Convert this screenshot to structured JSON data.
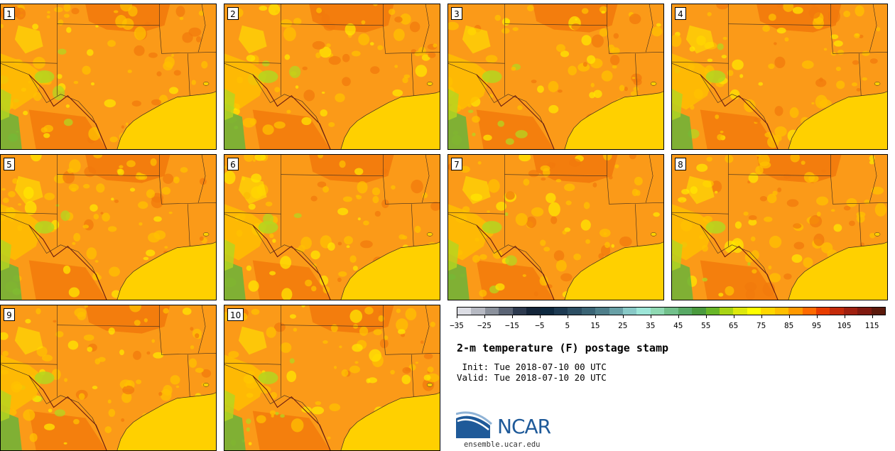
{
  "panels": [
    {
      "label": "1"
    },
    {
      "label": "2"
    },
    {
      "label": "3"
    },
    {
      "label": "4"
    },
    {
      "label": "5"
    },
    {
      "label": "6"
    },
    {
      "label": "7"
    },
    {
      "label": "8"
    },
    {
      "label": "9"
    },
    {
      "label": "10"
    }
  ],
  "colorbar": {
    "colors": [
      "#dcdde4",
      "#b6b9c2",
      "#8b919c",
      "#5b6475",
      "#2d3a4f",
      "#14253a",
      "#0e2940",
      "#1d3a52",
      "#2c4e63",
      "#3a6475",
      "#4e7e8a",
      "#68a0a6",
      "#88c9c7",
      "#9de6d8",
      "#8fd9b3",
      "#72c08b",
      "#58a965",
      "#4a9a3e",
      "#68b628",
      "#a8d414",
      "#dde80c",
      "#ffff00",
      "#ffd700",
      "#ffbf00",
      "#ff9900",
      "#ff6a00",
      "#e83c00",
      "#c42a0a",
      "#a02010",
      "#801a10",
      "#5c1a0c"
    ],
    "ticks": [
      "−35",
      "−25",
      "−15",
      "−5",
      "5",
      "15",
      "25",
      "35",
      "45",
      "55",
      "65",
      "75",
      "85",
      "95",
      "105",
      "115"
    ],
    "units": "F"
  },
  "title": "2-m temperature (F) postage stamp",
  "init": " Init: Tue 2018-07-10 00 UTC",
  "valid": "Valid: Tue 2018-07-10 20 UTC",
  "logo": {
    "text": "NCAR",
    "url": "ensemble.ucar.edu",
    "brand_color": "#1f5a99"
  },
  "map": {
    "ocean_color": "#ffd000",
    "land_base_color": "#fb9a18",
    "hot_color": "#f27a0c",
    "warm_color": "#ffc000",
    "mild_color": "#ffe600",
    "cool_color": "#b4d620",
    "cooler_color": "#6ab43a",
    "region": "Southern Plains / Texas"
  }
}
